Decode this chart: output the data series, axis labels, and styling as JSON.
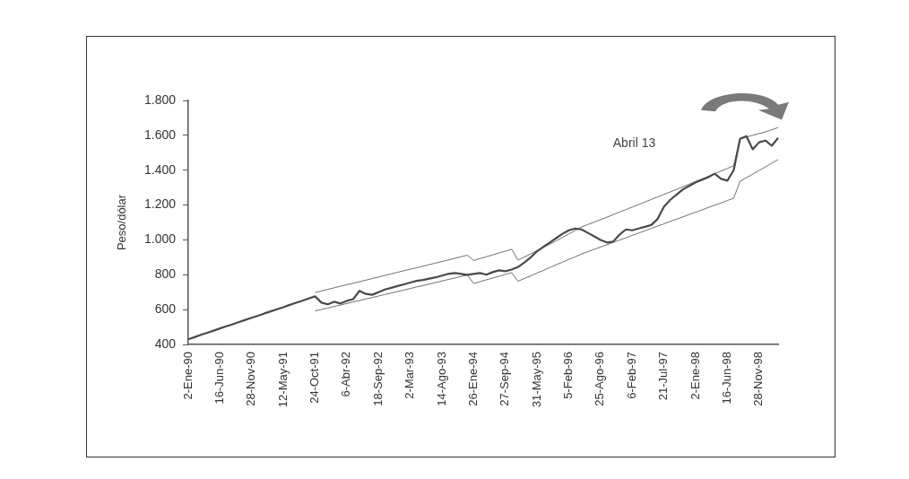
{
  "chart_data": {
    "type": "line",
    "ylabel": "Peso/dólar",
    "categories": [
      "2-Ene-90",
      null,
      null,
      null,
      null,
      "16-Jun-90",
      null,
      null,
      null,
      null,
      "28-Nov-90",
      null,
      null,
      null,
      null,
      "12-May-91",
      null,
      null,
      null,
      null,
      "24-Oct-91",
      null,
      null,
      null,
      null,
      "6-Abr-92",
      null,
      null,
      null,
      null,
      "18-Sep-92",
      null,
      null,
      null,
      null,
      "2-Mar-93",
      null,
      null,
      null,
      null,
      "14-Ago-93",
      null,
      null,
      null,
      null,
      "26-Ene-94",
      null,
      null,
      null,
      null,
      "27-Sep-94",
      null,
      null,
      null,
      null,
      "31-May-95",
      null,
      null,
      null,
      null,
      "5-Feb-96",
      null,
      null,
      null,
      null,
      "25-Ago-96",
      null,
      null,
      null,
      null,
      "6-Feb-97",
      null,
      null,
      null,
      null,
      "21-Jul-97",
      null,
      null,
      null,
      null,
      "2-Ene-98",
      null,
      null,
      null,
      null,
      "16-Jun-98",
      null,
      null,
      null,
      null,
      "28-Nov-98",
      null,
      null,
      null
    ],
    "series": [
      {
        "color": "#4a4a4a",
        "values": [
          430,
          442,
          455,
          467,
          479,
          492,
          504,
          516,
          529,
          541,
          553,
          565,
          578,
          590,
          602,
          614,
          627,
          639,
          651,
          664,
          676,
          640,
          630,
          645,
          635,
          650,
          660,
          708,
          690,
          685,
          700,
          715,
          725,
          735,
          745,
          755,
          765,
          770,
          778,
          785,
          795,
          805,
          810,
          805,
          800,
          805,
          810,
          800,
          815,
          825,
          820,
          830,
          845,
          870,
          900,
          935,
          960,
          985,
          1010,
          1035,
          1055,
          1065,
          1060,
          1040,
          1020,
          1000,
          985,
          990,
          1030,
          1060,
          1055,
          1065,
          1075,
          1085,
          1120,
          1190,
          1230,
          1260,
          1290,
          1310,
          1330,
          1345,
          1360,
          1380,
          1350,
          1340,
          1400,
          1580,
          1595,
          1520,
          1560,
          1570,
          1540,
          1585
        ]
      },
      {
        "color": "#6e6e6e",
        "values": [
          null,
          null,
          null,
          null,
          null,
          null,
          null,
          null,
          null,
          null,
          null,
          null,
          null,
          null,
          null,
          null,
          null,
          null,
          null,
          null,
          698,
          707,
          716,
          725,
          734,
          743,
          751,
          760,
          769,
          778,
          787,
          796,
          805,
          814,
          823,
          832,
          840,
          849,
          858,
          867,
          876,
          885,
          894,
          903,
          912,
          882,
          893,
          903,
          914,
          925,
          935,
          946,
          884,
          902,
          920,
          939,
          957,
          975,
          994,
          1014,
          1034,
          1054,
          1074,
          1088,
          1102,
          1116,
          1130,
          1145,
          1160,
          1174,
          1188,
          1203,
          1217,
          1232,
          1246,
          1261,
          1275,
          1290,
          1305,
          1320,
          1335,
          1350,
          1365,
          1380,
          1395,
          1410,
          1426,
          1580,
          1590,
          1600,
          1610,
          1620,
          1632,
          1645
        ]
      },
      {
        "color": "#6e6e6e",
        "values": [
          null,
          null,
          null,
          null,
          null,
          null,
          null,
          null,
          null,
          null,
          null,
          null,
          null,
          null,
          null,
          null,
          null,
          null,
          null,
          null,
          592,
          601,
          609,
          618,
          626,
          635,
          644,
          652,
          661,
          669,
          678,
          687,
          695,
          704,
          712,
          721,
          730,
          738,
          747,
          755,
          764,
          773,
          781,
          790,
          798,
          750,
          760,
          771,
          781,
          791,
          802,
          812,
          763,
          779,
          794,
          810,
          825,
          841,
          857,
          872,
          888,
          903,
          919,
          932,
          946,
          959,
          972,
          986,
          999,
          1012,
          1026,
          1039,
          1052,
          1066,
          1079,
          1092,
          1106,
          1119,
          1132,
          1146,
          1159,
          1172,
          1186,
          1199,
          1212,
          1226,
          1239,
          1337,
          1357,
          1377,
          1398,
          1419,
          1440,
          1461
        ]
      }
    ],
    "ylim": [
      400,
      1800
    ],
    "yticks": [
      400,
      600,
      800,
      {
        "value": 1000,
        "label": "1.000"
      },
      {
        "value": 1200,
        "label": "1.200"
      },
      {
        "value": 1400,
        "label": "1.400"
      },
      {
        "value": 1600,
        "label": "1.600"
      },
      {
        "value": 1800,
        "label": "1.800"
      }
    ],
    "grid": false,
    "legend": false,
    "marker": "none",
    "line_style": "solid",
    "annotations": [
      "Abril 13"
    ]
  }
}
